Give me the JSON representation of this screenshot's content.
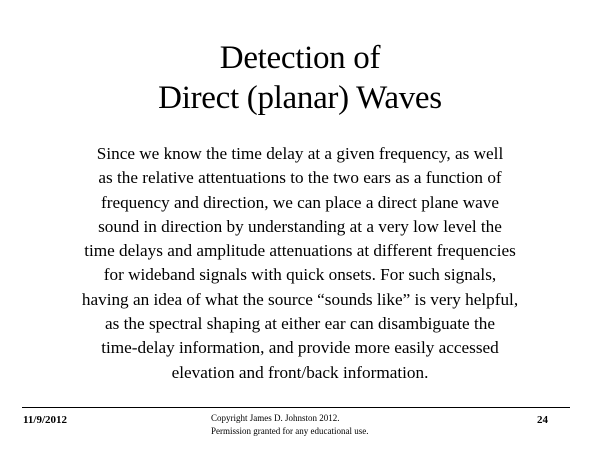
{
  "slide": {
    "title_lines": [
      "Detection of",
      "Direct (planar) Waves"
    ],
    "body_lines": [
      "Since we know the time delay at a given frequency, as well",
      "as the relative attentuations to the two ears as a function of",
      "frequency and direction, we can place a direct plane wave",
      "sound in direction by understanding at a very low level the",
      "time delays and amplitude attenuations at different frequencies",
      "for wideband signals with quick onsets.  For such signals,",
      "having an idea of what the source “sounds like” is very helpful,",
      "as the spectral shaping at either ear can disambiguate the",
      "time-delay information, and provide more easily accessed",
      "elevation and front/back information."
    ]
  },
  "footer": {
    "date": "11/9/2012",
    "copyright_lines": [
      "Copyright James D. Johnston 2012.",
      "Permission granted for any educational use."
    ],
    "page_number": "24"
  }
}
